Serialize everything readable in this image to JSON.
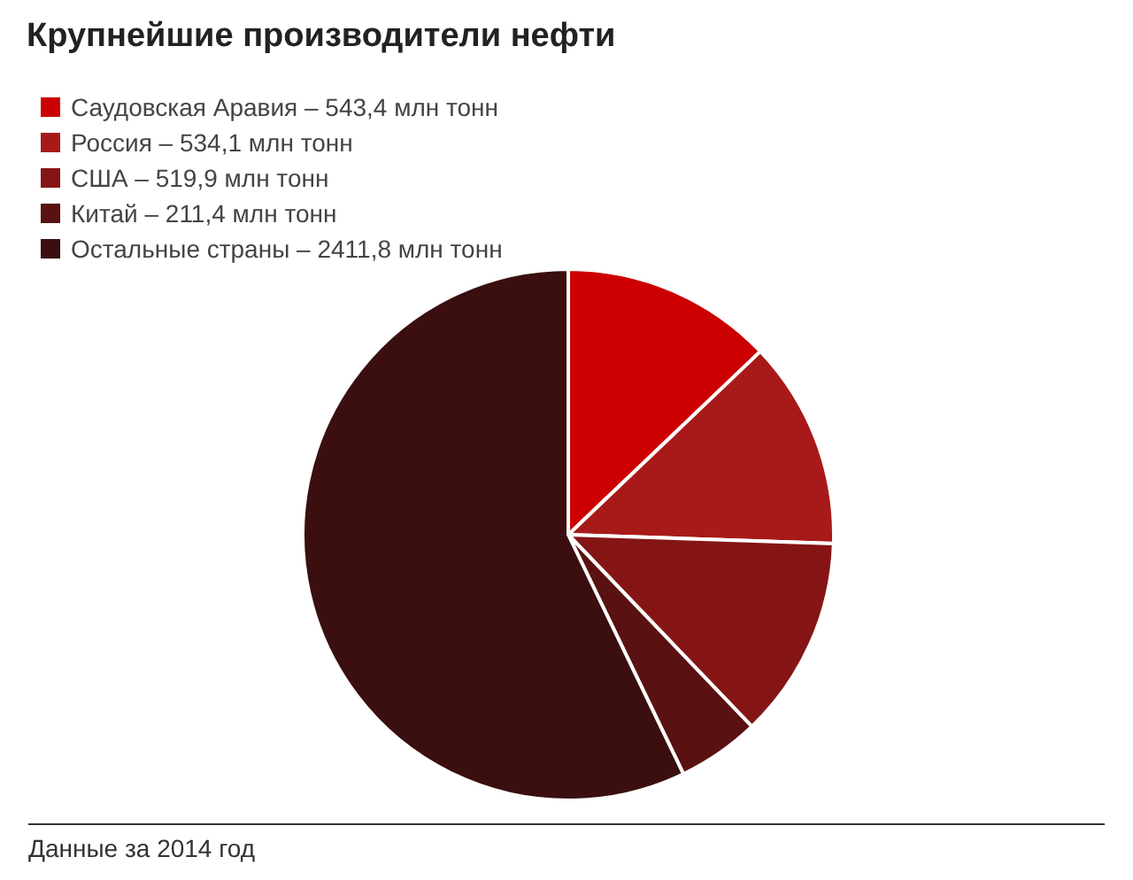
{
  "chart_data": {
    "type": "pie",
    "title": "Крупнейшие производители нефти",
    "categories": [
      "Саудовская Аравия",
      "Россия",
      "США",
      "Китай",
      "Остальные страны"
    ],
    "values": [
      543.4,
      534.1,
      519.9,
      211.4,
      2411.8
    ],
    "value_labels": [
      "543,4 млн тонн",
      "534,1 млн тонн",
      "519,9 млн тонн",
      "211,4 млн тонн",
      "2411,8 млн тонн"
    ],
    "colors": [
      "#cc0000",
      "#a81a1a",
      "#851515",
      "#5a1111",
      "#3b0f0f"
    ],
    "legend": "top left",
    "annotations": [
      "Данные за 2014 год"
    ]
  }
}
